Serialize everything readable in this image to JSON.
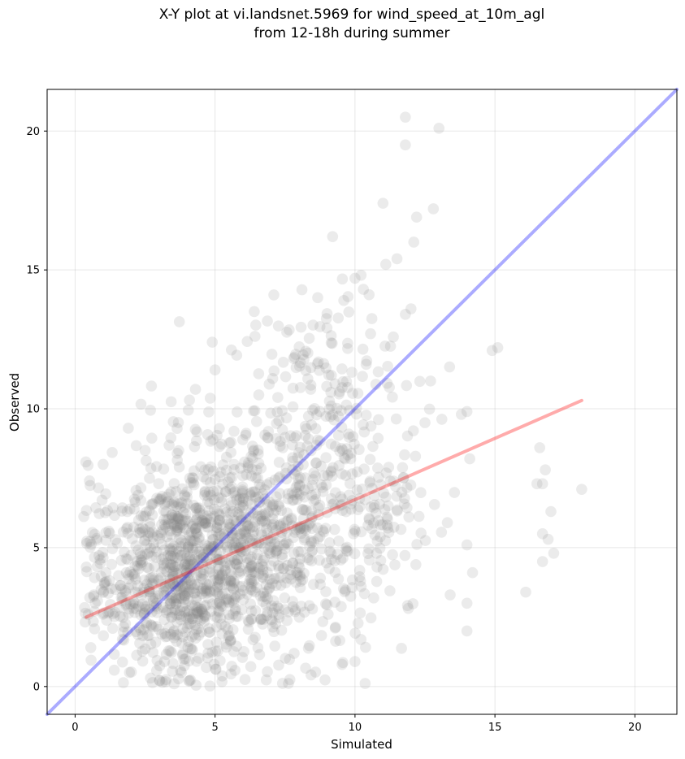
{
  "chart_data": {
    "type": "scatter",
    "title_lines": [
      "X-Y plot at vi.landsnet.5969 for wind_speed_at_10m_agl",
      "from 12-18h during summer"
    ],
    "xlabel": "Simulated",
    "ylabel": "Observed",
    "xlim": [
      -1,
      21.5
    ],
    "ylim": [
      -1,
      21.5
    ],
    "xticks": [
      0,
      5,
      10,
      15,
      20
    ],
    "yticks": [
      0,
      5,
      10,
      15,
      20
    ],
    "grid": true,
    "point_color": "#808080",
    "points_sample_note": "",
    "outlier_points": [
      [
        11.8,
        20.5
      ],
      [
        13.0,
        20.1
      ],
      [
        11.8,
        19.5
      ],
      [
        11.0,
        17.4
      ],
      [
        12.2,
        16.9
      ],
      [
        12.8,
        17.2
      ],
      [
        9.2,
        16.2
      ],
      [
        12.1,
        16.0
      ],
      [
        11.1,
        15.2
      ],
      [
        11.5,
        15.4
      ],
      [
        10.0,
        14.7
      ],
      [
        10.3,
        14.3
      ],
      [
        7.1,
        14.1
      ],
      [
        6.4,
        13.5
      ],
      [
        11.8,
        13.4
      ],
      [
        12.0,
        13.6
      ],
      [
        15.1,
        12.2
      ],
      [
        14.9,
        12.1
      ],
      [
        4.9,
        12.4
      ],
      [
        5.0,
        11.4
      ],
      [
        14.0,
        9.9
      ],
      [
        13.8,
        9.8
      ],
      [
        14.1,
        8.2
      ],
      [
        16.6,
        8.6
      ],
      [
        16.8,
        7.8
      ],
      [
        18.1,
        7.1
      ],
      [
        16.5,
        7.3
      ],
      [
        16.7,
        7.3
      ],
      [
        17.0,
        6.3
      ],
      [
        16.7,
        5.5
      ],
      [
        16.9,
        5.3
      ],
      [
        17.1,
        4.8
      ],
      [
        16.7,
        4.5
      ],
      [
        16.1,
        3.4
      ],
      [
        14.2,
        4.1
      ],
      [
        14.0,
        5.1
      ],
      [
        13.4,
        3.3
      ],
      [
        14.0,
        3.0
      ],
      [
        14.0,
        2.0
      ],
      [
        13.3,
        5.9
      ],
      [
        10.0,
        0.9
      ],
      [
        1.0,
        8.0
      ],
      [
        1.9,
        9.3
      ],
      [
        2.5,
        8.5
      ],
      [
        4.3,
        10.7
      ],
      [
        9.6,
        13.9
      ],
      [
        10.4,
        11.6
      ],
      [
        12.5,
        9.5
      ],
      [
        12.7,
        11.0
      ],
      [
        0.4,
        4.3
      ]
    ],
    "cloud": [
      {
        "cx": 3.8,
        "cy": 4.2,
        "sx": 1.7,
        "sy": 1.9,
        "n": 900
      },
      {
        "cx": 6.5,
        "cy": 5.4,
        "sx": 1.8,
        "sy": 2.2,
        "n": 500
      },
      {
        "cx": 9.5,
        "cy": 6.8,
        "sx": 1.6,
        "sy": 2.9,
        "n": 260
      },
      {
        "cx": 8.8,
        "cy": 10.8,
        "sx": 1.4,
        "sy": 1.9,
        "n": 90
      }
    ],
    "series": [
      {
        "name": "",
        "kind": "line",
        "color": "#0000ff",
        "x": [
          -1,
          21.5
        ],
        "y": [
          -1,
          21.5
        ]
      },
      {
        "name": "",
        "kind": "line",
        "color": "#ff0000",
        "x": [
          0.4,
          18.1
        ],
        "y": [
          2.5,
          10.3
        ]
      }
    ]
  }
}
